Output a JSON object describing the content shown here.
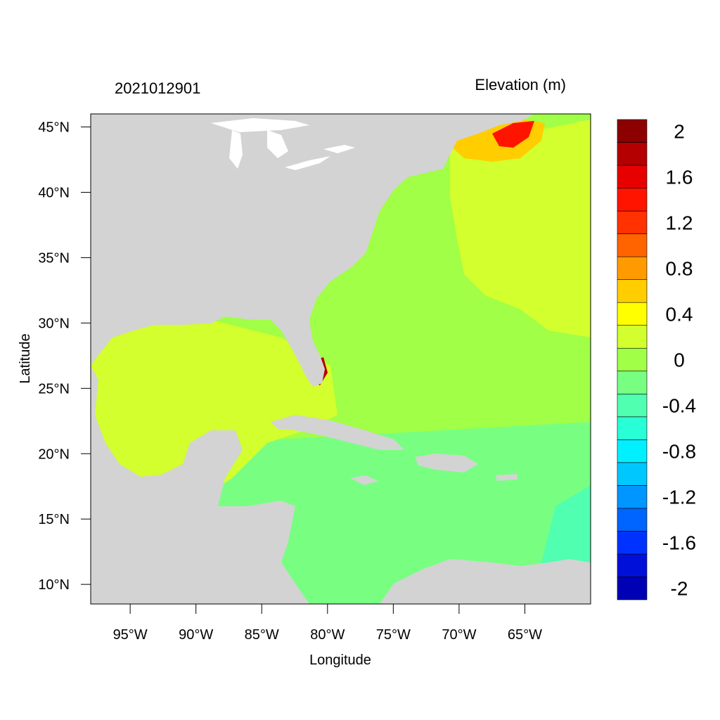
{
  "figure": {
    "date_label": "2021012901",
    "variable_label": "Elevation (m)",
    "x_axis_title": "Longitude",
    "y_axis_title": "Latitude"
  },
  "map": {
    "extent": {
      "lon_min": -98,
      "lon_max": -60,
      "lat_min": 8.5,
      "lat_max": 46
    },
    "land_color": "#d3d3d3",
    "lake_color": "#ffffff",
    "x_ticks": [
      {
        "lon": -95,
        "label": "95°W"
      },
      {
        "lon": -90,
        "label": "90°W"
      },
      {
        "lon": -85,
        "label": "85°W"
      },
      {
        "lon": -80,
        "label": "80°W"
      },
      {
        "lon": -75,
        "label": "75°W"
      },
      {
        "lon": -70,
        "label": "70°W"
      },
      {
        "lon": -65,
        "label": "65°W"
      }
    ],
    "y_ticks": [
      {
        "lat": 45,
        "label": "45°N"
      },
      {
        "lat": 40,
        "label": "40°N"
      },
      {
        "lat": 35,
        "label": "35°N"
      },
      {
        "lat": 30,
        "label": "30°N"
      },
      {
        "lat": 25,
        "label": "25°N"
      },
      {
        "lat": 20,
        "label": "20°N"
      },
      {
        "lat": 15,
        "label": "15°N"
      },
      {
        "lat": 10,
        "label": "10°N"
      }
    ],
    "field_regions": [
      {
        "name": "atlantic-background",
        "level_index": 10
      },
      {
        "name": "caribbean-south",
        "level_index": 9
      },
      {
        "name": "gulf-of-mexico",
        "level_index": 11
      },
      {
        "name": "northeast-anomaly",
        "level_index": 11
      },
      {
        "name": "gulf-of-maine-surge",
        "level_index": 13
      },
      {
        "name": "gulf-of-maine-peak",
        "level_index": 17
      },
      {
        "name": "south-florida-peak",
        "level_index": 19
      },
      {
        "name": "eastern-caribbean-edge",
        "level_index": 8
      }
    ]
  },
  "colorbar": {
    "colors": [
      "#0000b4",
      "#0010d9",
      "#0032ff",
      "#0064ff",
      "#0096ff",
      "#00c8ff",
      "#00f0ff",
      "#28ffd7",
      "#50ffaf",
      "#78ff82",
      "#a0ff46",
      "#d2ff2d",
      "#ffff00",
      "#ffcd00",
      "#ff9b00",
      "#ff6400",
      "#ff3200",
      "#ff1400",
      "#e60000",
      "#b40000",
      "#8c0000"
    ],
    "labels": [
      "-2",
      "-1.6",
      "-1.2",
      "-0.8",
      "-0.4",
      "0",
      "0.4",
      "0.8",
      "1.2",
      "1.6",
      "2"
    ]
  }
}
